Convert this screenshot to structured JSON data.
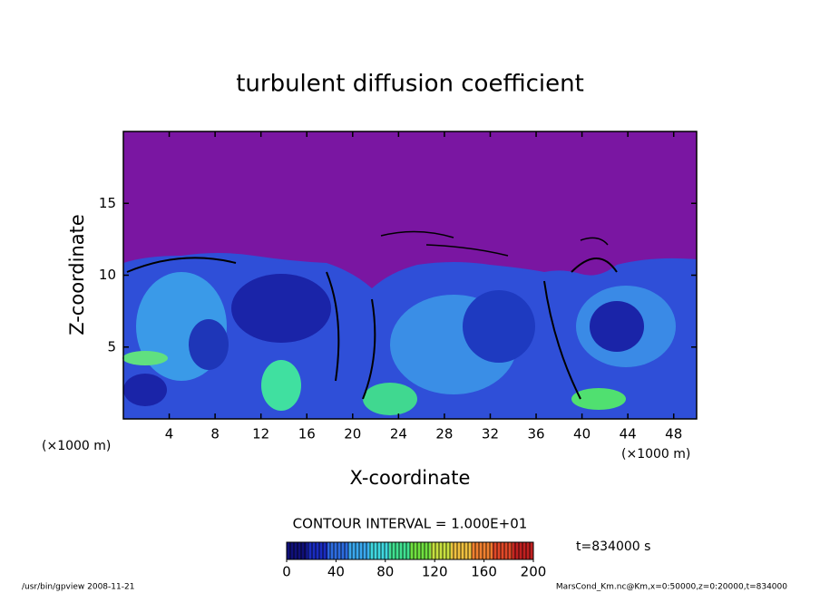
{
  "chart_data": {
    "type": "contour",
    "title": "turbulent diffusion coefficient",
    "xlabel": "X-coordinate",
    "ylabel": "Z-coordinate",
    "x_unit": "(×1000 m)",
    "y_unit": "(×1000 m)",
    "xlim": [
      0,
      50
    ],
    "ylim": [
      0,
      20
    ],
    "xticks": [
      4,
      8,
      12,
      16,
      20,
      24,
      28,
      32,
      36,
      40,
      44,
      48
    ],
    "yticks": [
      5,
      10,
      15
    ],
    "contour_interval": "CONTOUR INTERVAL = 1.000E+01",
    "time_label": "t=834000 s",
    "colorbar": {
      "range": [
        0,
        200
      ],
      "ticks": [
        0,
        40,
        80,
        120,
        160,
        200
      ],
      "colors": [
        "#10107a",
        "#1a2cc0",
        "#2d6ce0",
        "#3aa8ee",
        "#40d8e0",
        "#40e090",
        "#70e040",
        "#c8e040",
        "#f0c040",
        "#f08030",
        "#e04828",
        "#c02020"
      ]
    },
    "footer_left": "/usr/bin/gpview  2008-11-21",
    "footer_right": "MarsCond_Km.nc@Km,x=0:50000,z=0:20000,t=834000"
  }
}
